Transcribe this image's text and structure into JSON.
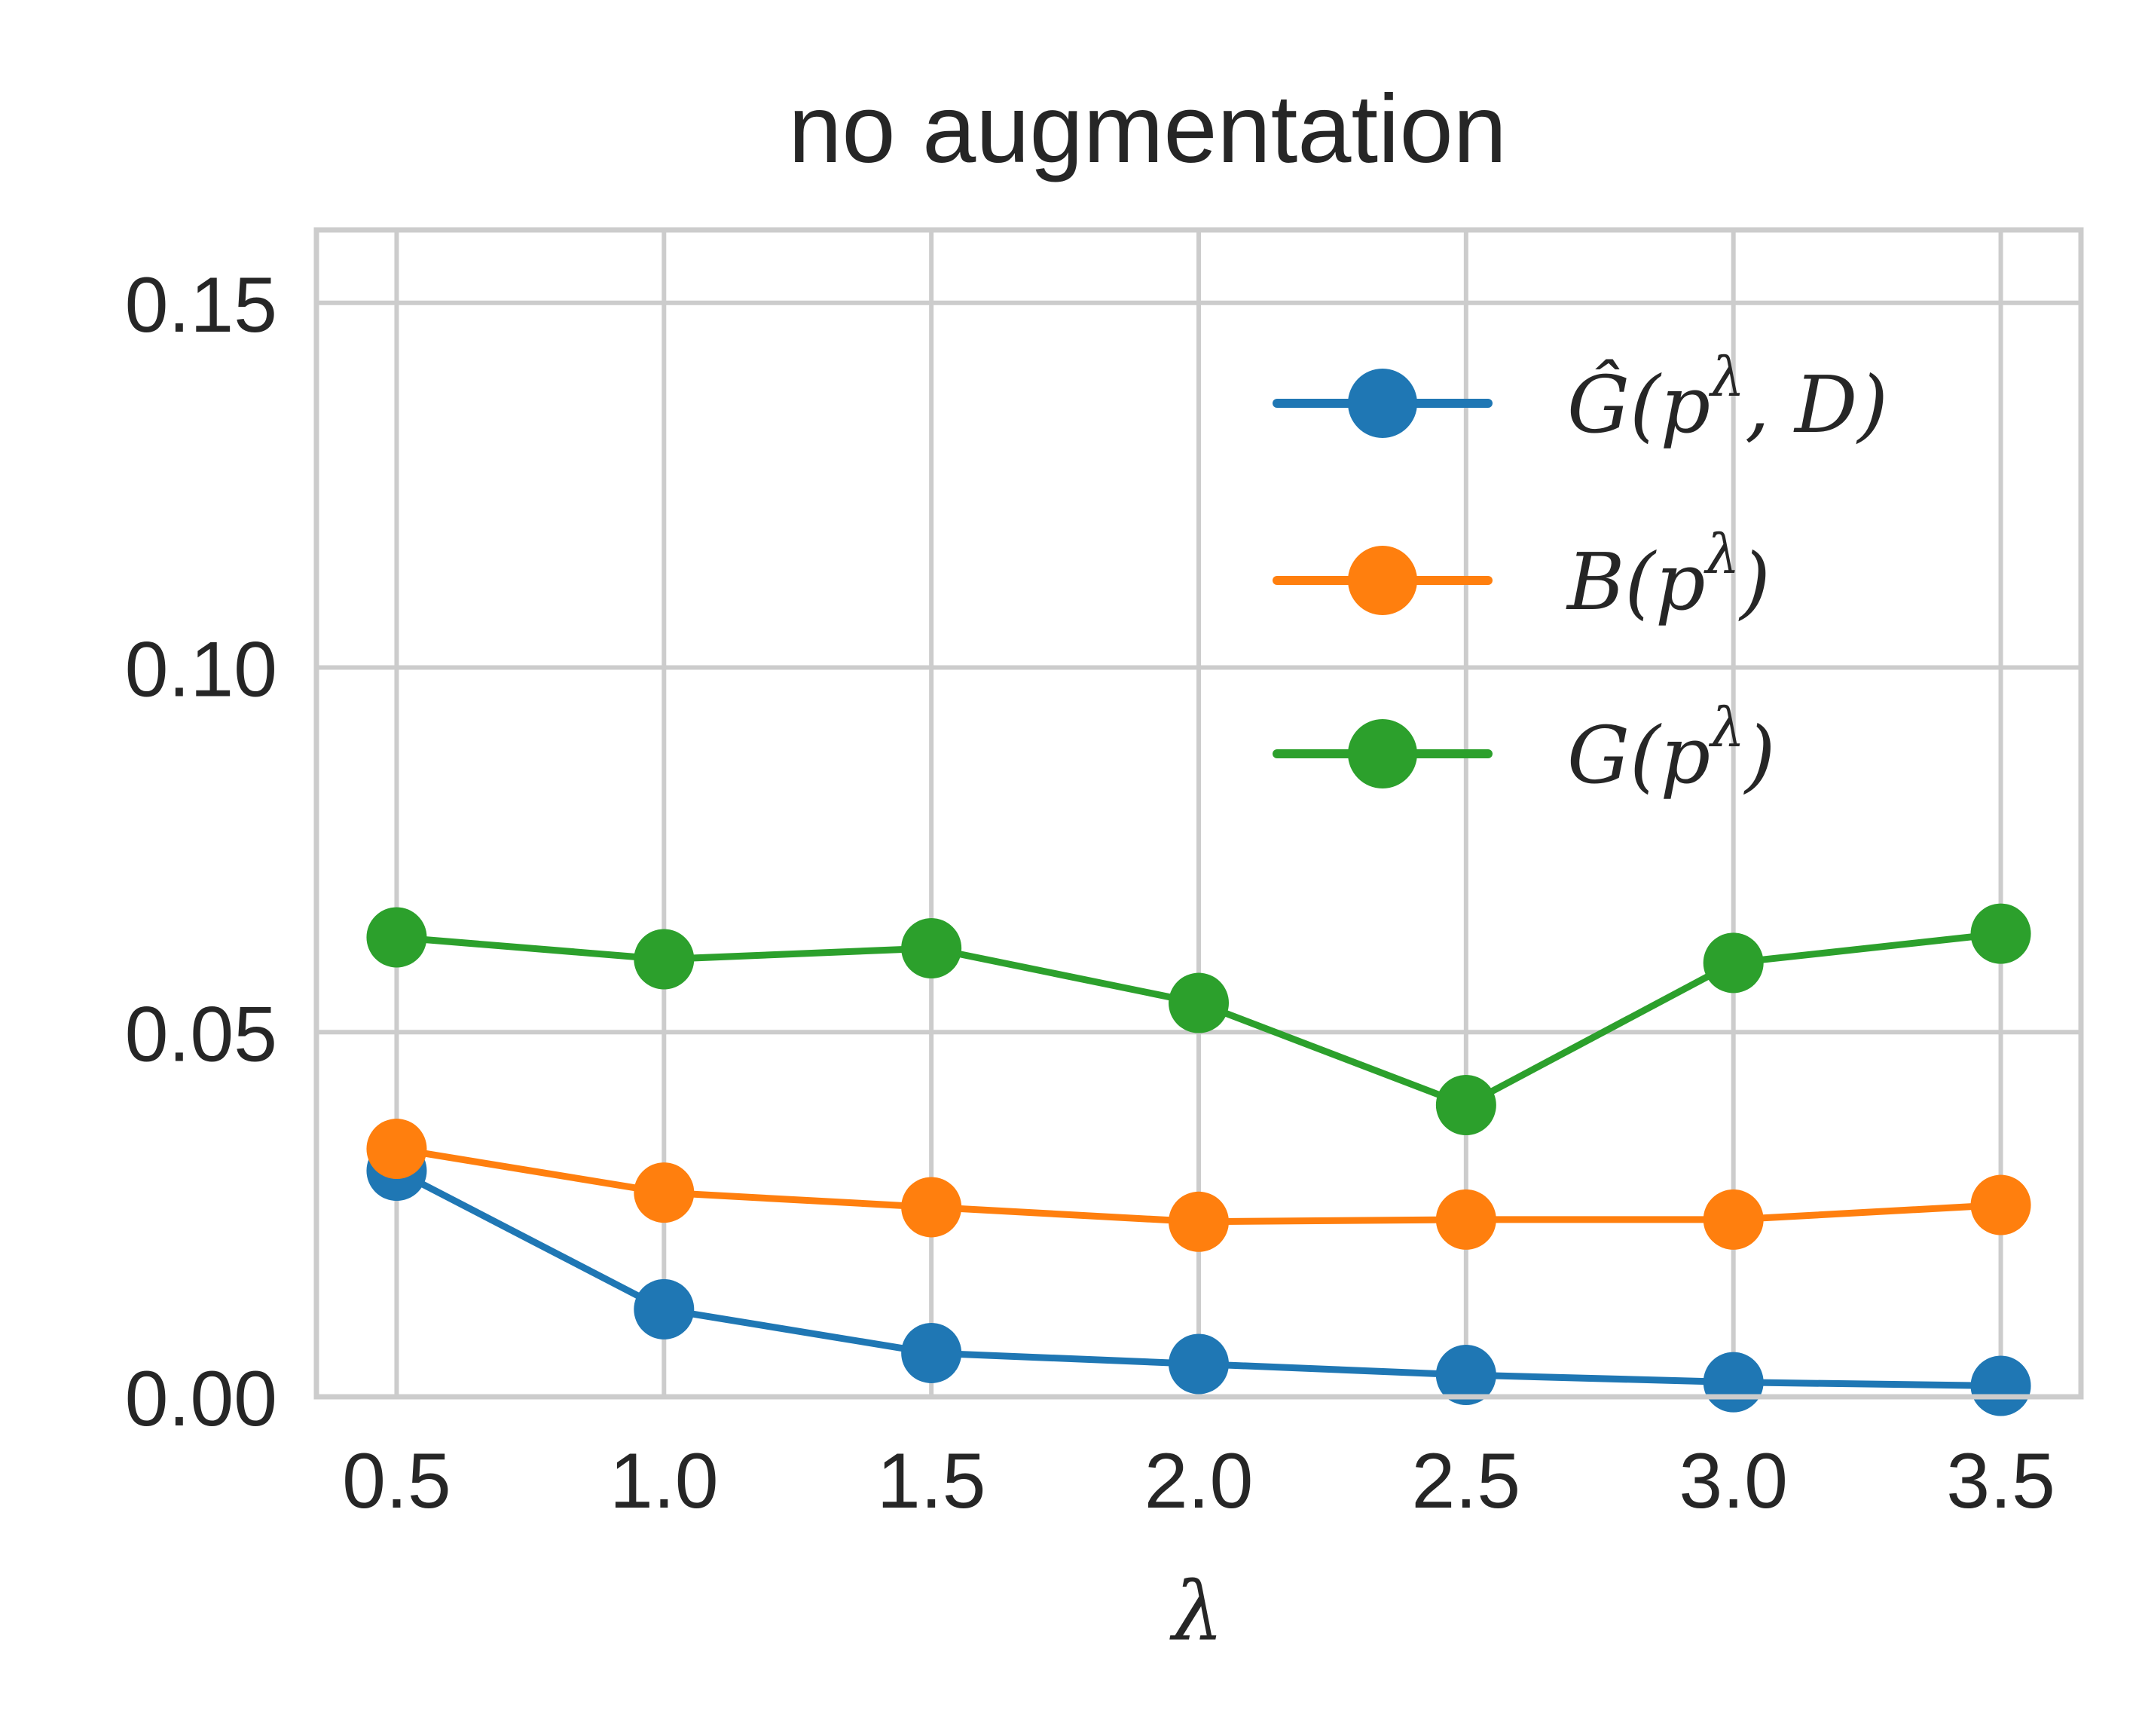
{
  "chart_data": {
    "type": "line",
    "title": "no augmentation",
    "xlabel": "λ",
    "ylabel": "",
    "x": [
      0.5,
      1.0,
      1.5,
      2.0,
      2.5,
      3.0,
      3.5
    ],
    "xlim": [
      0.35,
      3.65
    ],
    "ylim": [
      0.0,
      0.16
    ],
    "xticks": [
      "0.5",
      "1.0",
      "1.5",
      "2.0",
      "2.5",
      "3.0",
      "3.5"
    ],
    "yticks": [
      "0.00",
      "0.05",
      "0.10",
      "0.15"
    ],
    "grid": true,
    "legend_position": "upper right",
    "series": [
      {
        "name": "Ĝ(p^λ, D)",
        "legend_base": "Ĝ(p",
        "legend_sup": "λ",
        "legend_tail": ", D)",
        "color": "#1f77b4",
        "values": [
          0.031,
          0.012,
          0.006,
          0.0045,
          0.003,
          0.002,
          0.0015
        ]
      },
      {
        "name": "B(p^λ)",
        "legend_base": "B(p",
        "legend_sup": "λ",
        "legend_tail": ")",
        "color": "#ff7f0e",
        "values": [
          0.034,
          0.028,
          0.026,
          0.024,
          0.0243,
          0.0243,
          0.0263
        ]
      },
      {
        "name": "G(p^λ)",
        "legend_base": "G(p",
        "legend_sup": "λ",
        "legend_tail": ")",
        "color": "#2ca02c",
        "values": [
          0.063,
          0.06,
          0.0615,
          0.054,
          0.04,
          0.0595,
          0.0635
        ]
      }
    ]
  }
}
